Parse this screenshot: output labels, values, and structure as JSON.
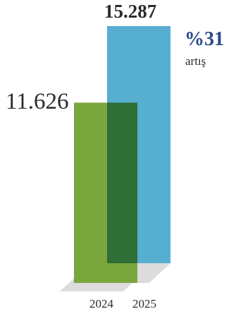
{
  "chart_data": {
    "type": "bar",
    "categories": [
      "2024",
      "2025"
    ],
    "values": [
      11626,
      15287
    ],
    "value_labels": [
      "11.626",
      "15.287"
    ],
    "ylim": [
      0,
      15287
    ],
    "annotation": {
      "percent": "%31",
      "text": "artış"
    },
    "colors": {
      "bar_2024": "#7ba63e",
      "bar_2025": "#56aed1",
      "overlap": "#2f6e35",
      "percent_text": "#2a4a8a",
      "shadow": "#dcdcdc",
      "text": "#2b2b2b"
    }
  }
}
